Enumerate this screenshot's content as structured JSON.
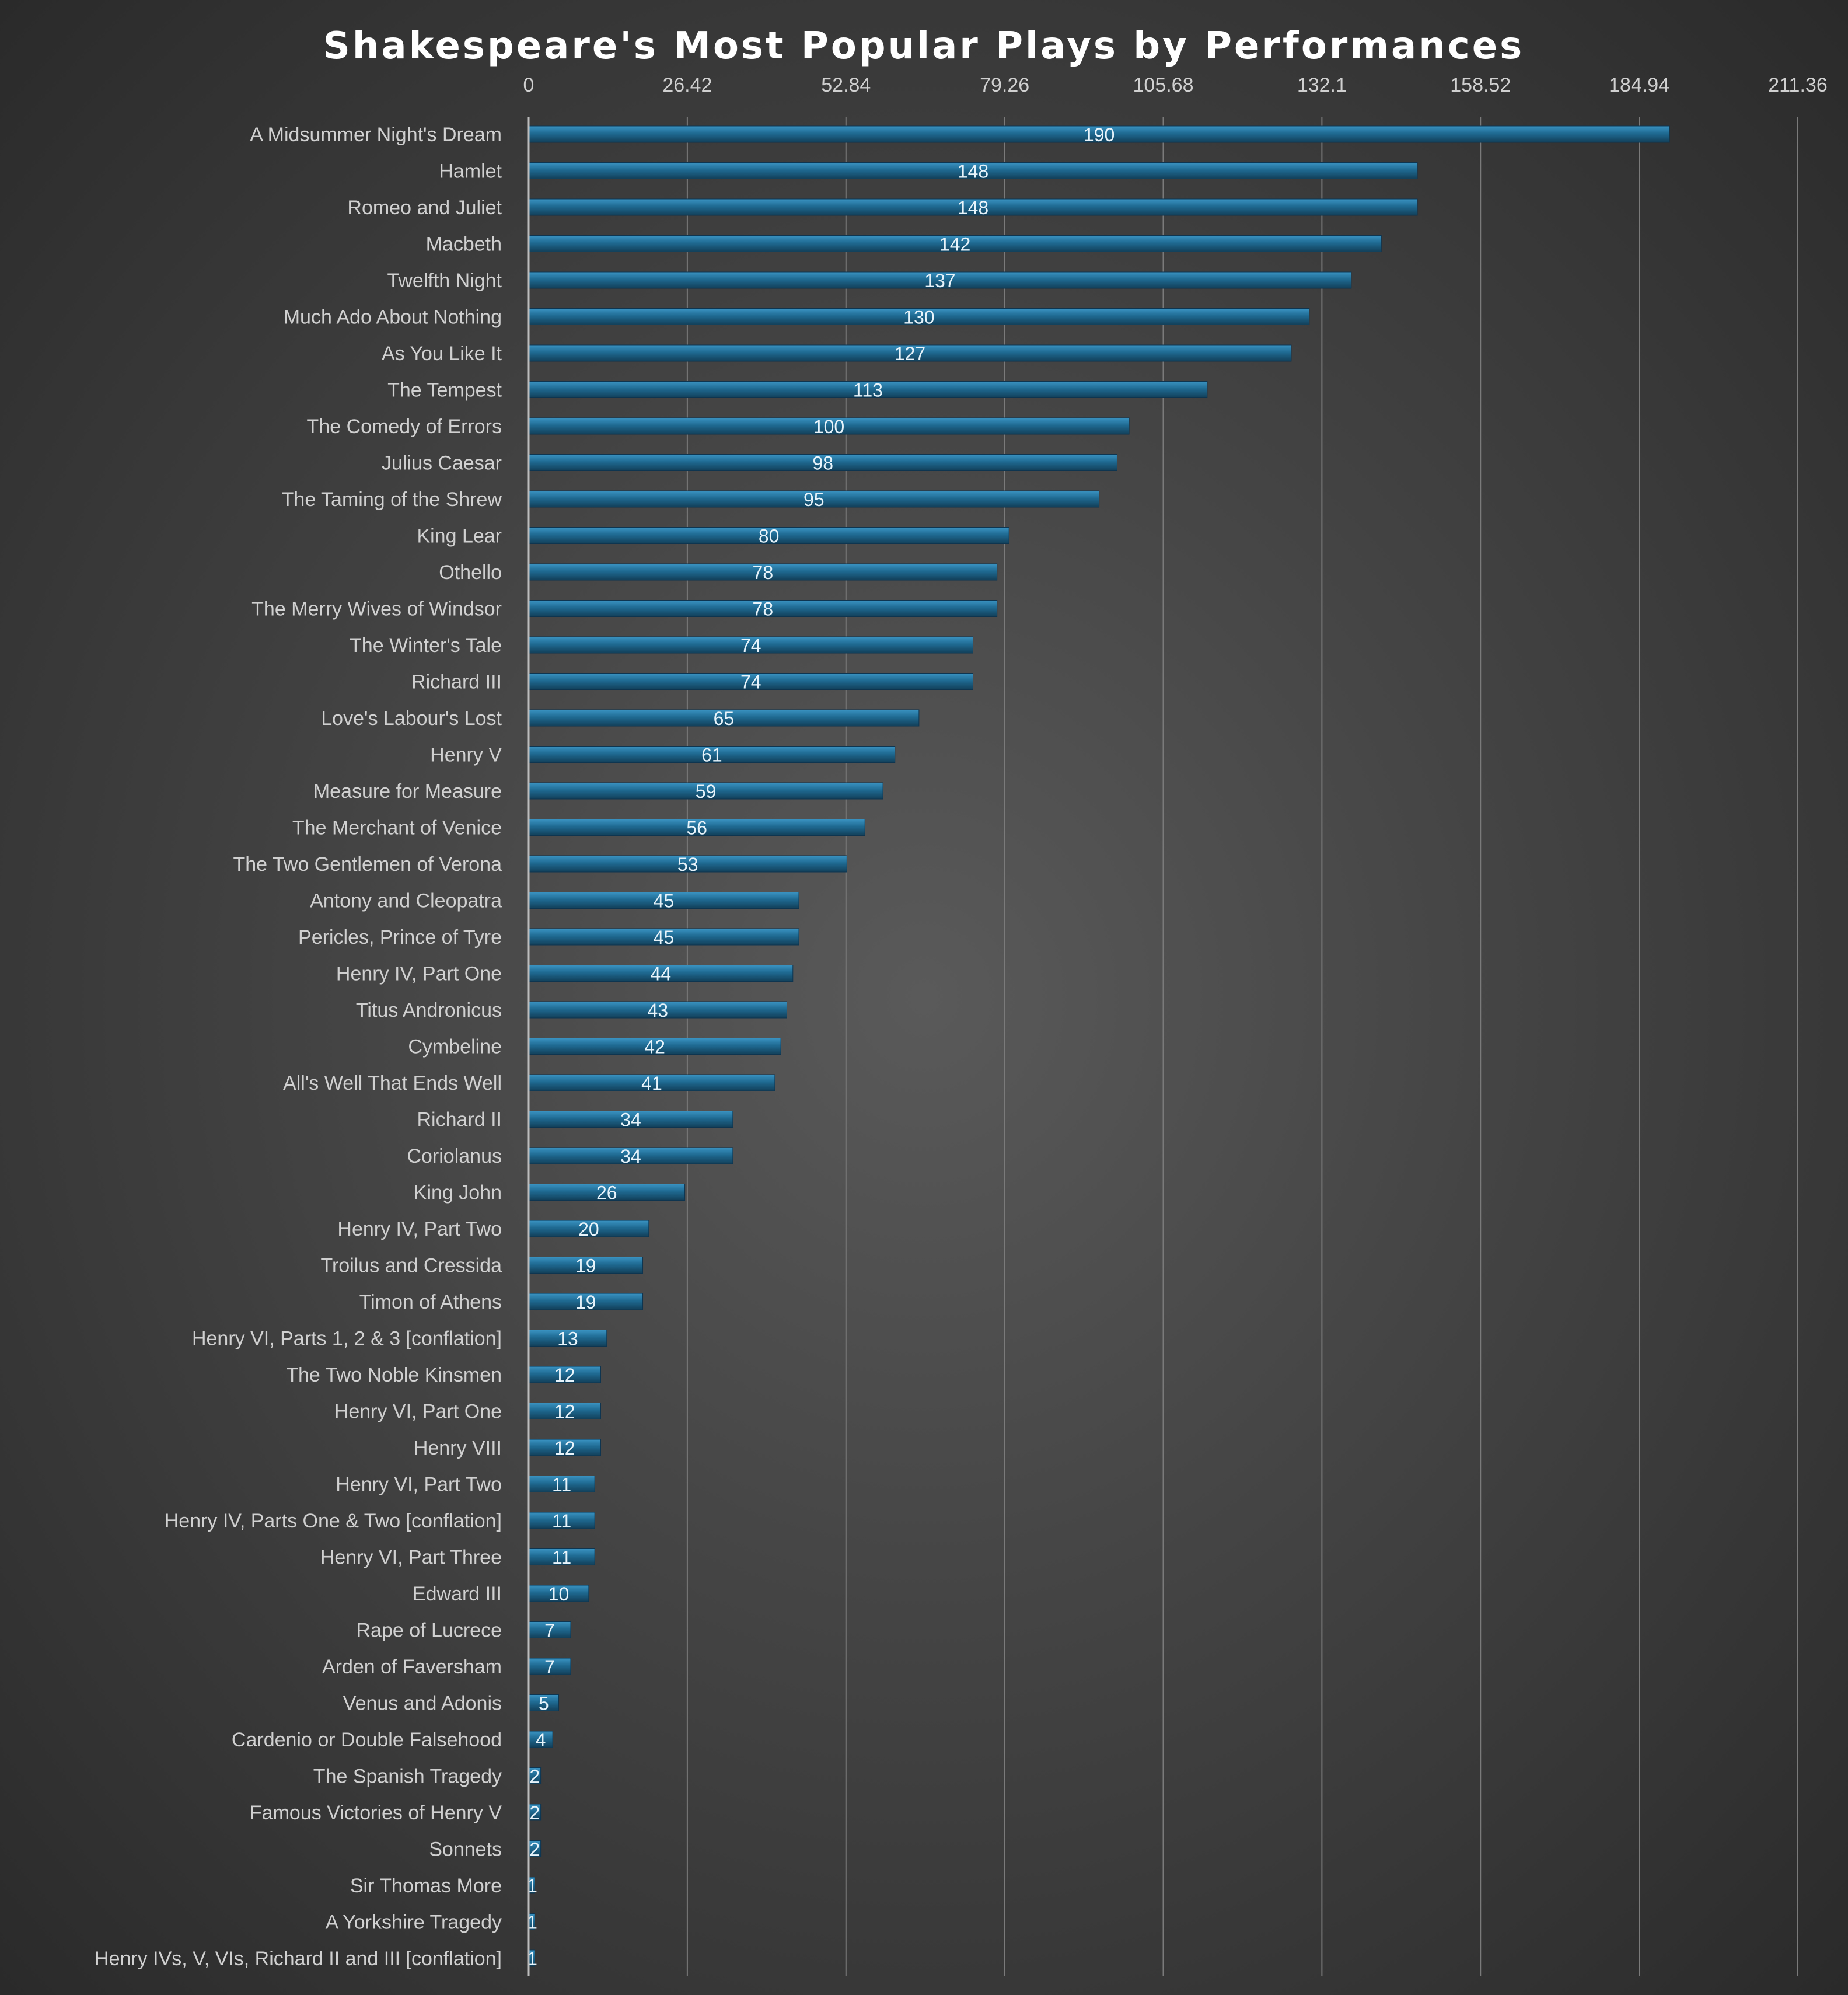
{
  "chart_data": {
    "type": "bar",
    "orientation": "horizontal",
    "title": "Shakespeare's Most Popular Plays by Performances",
    "xlabel": "",
    "ylabel": "",
    "xlim": [
      0,
      211.36
    ],
    "x_ticks": [
      "0",
      "26.42",
      "52.84",
      "79.26",
      "105.68",
      "132.1",
      "158.52",
      "184.94",
      "211.36"
    ],
    "grid": true,
    "legend": "none",
    "colors": {
      "bar": "#1f6a92",
      "bar_highlight": "#3a93c2",
      "label": "#e8f4fb",
      "tick": "#d0d0d0",
      "gridline": "#7a7a7a"
    },
    "categories": [
      "A Midsummer Night's Dream",
      "Hamlet",
      "Romeo and Juliet",
      "Macbeth",
      "Twelfth Night",
      "Much Ado About Nothing",
      "As You Like It",
      "The Tempest",
      "The Comedy of Errors",
      "Julius Caesar",
      "The Taming of the Shrew",
      "King Lear",
      "Othello",
      "The Merry Wives of Windsor",
      "The Winter's Tale",
      "Richard III",
      "Love's Labour's Lost",
      "Henry V",
      "Measure for Measure",
      "The Merchant of Venice",
      "The Two Gentlemen of Verona",
      "Antony and Cleopatra",
      "Pericles, Prince of Tyre",
      "Henry IV, Part One",
      "Titus Andronicus",
      "Cymbeline",
      "All's Well That Ends Well",
      "Richard II",
      "Coriolanus",
      "King John",
      "Henry IV, Part Two",
      "Troilus and Cressida",
      "Timon of Athens",
      "Henry VI, Parts 1, 2 & 3 [conflation]",
      "The Two Noble Kinsmen",
      "Henry VI, Part One",
      "Henry VIII",
      "Henry VI, Part Two",
      "Henry IV, Parts One & Two [conflation]",
      "Henry VI, Part Three",
      "Edward III",
      "Rape of Lucrece",
      "Arden of Faversham",
      "Venus and Adonis",
      "Cardenio or Double Falsehood",
      "The Spanish Tragedy",
      "Famous Victories of Henry V",
      "Sonnets",
      "Sir Thomas More",
      "A Yorkshire Tragedy",
      "Henry IVs, V, VIs, Richard II and III [conflation]"
    ],
    "values": [
      190,
      148,
      148,
      142,
      137,
      130,
      127,
      113,
      100,
      98,
      95,
      80,
      78,
      78,
      74,
      74,
      65,
      61,
      59,
      56,
      53,
      45,
      45,
      44,
      43,
      42,
      41,
      34,
      34,
      26,
      20,
      19,
      19,
      13,
      12,
      12,
      12,
      11,
      11,
      11,
      10,
      7,
      7,
      5,
      4,
      2,
      2,
      2,
      1,
      1,
      1
    ]
  }
}
